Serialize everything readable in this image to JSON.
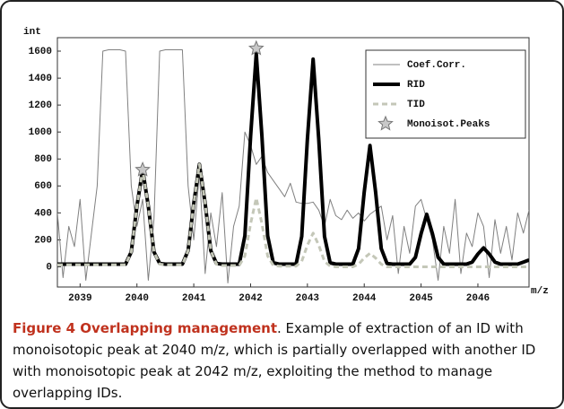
{
  "chart_data": {
    "type": "line",
    "y_label": "int",
    "x_label": "m/z",
    "xlim": [
      2038.6,
      2046.9
    ],
    "ylim": [
      -150,
      1700
    ],
    "xticks": [
      2039,
      2040,
      2041,
      2042,
      2043,
      2044,
      2045,
      2046
    ],
    "yticks": [
      0,
      200,
      400,
      600,
      800,
      1000,
      1200,
      1400,
      1600
    ],
    "legend": "upper right",
    "x": [
      2038.6,
      2038.7,
      2038.8,
      2038.9,
      2039.0,
      2039.1,
      2039.2,
      2039.3,
      2039.4,
      2039.5,
      2039.6,
      2039.7,
      2039.8,
      2039.9,
      2040.0,
      2040.1,
      2040.2,
      2040.3,
      2040.4,
      2040.5,
      2040.6,
      2040.7,
      2040.8,
      2040.9,
      2041.0,
      2041.1,
      2041.2,
      2041.3,
      2041.4,
      2041.5,
      2041.6,
      2041.7,
      2041.8,
      2041.9,
      2042.0,
      2042.1,
      2042.2,
      2042.3,
      2042.4,
      2042.5,
      2042.6,
      2042.7,
      2042.8,
      2042.9,
      2043.0,
      2043.1,
      2043.2,
      2043.3,
      2043.4,
      2043.5,
      2043.6,
      2043.7,
      2043.8,
      2043.9,
      2044.0,
      2044.1,
      2044.2,
      2044.3,
      2044.4,
      2044.5,
      2044.6,
      2044.7,
      2044.8,
      2044.9,
      2045.0,
      2045.1,
      2045.2,
      2045.3,
      2045.4,
      2045.5,
      2045.6,
      2045.7,
      2045.8,
      2045.9,
      2046.0,
      2046.1,
      2046.2,
      2046.3,
      2046.4,
      2046.5,
      2046.6,
      2046.7,
      2046.8,
      2046.9
    ],
    "series": [
      {
        "name": "Coef.Corr.",
        "color": "#808080",
        "style": "thin",
        "values": [
          400,
          -80,
          300,
          150,
          500,
          -100,
          250,
          600,
          1600,
          1610,
          1610,
          1610,
          1600,
          600,
          300,
          500,
          -100,
          350,
          1600,
          1610,
          1610,
          1610,
          1610,
          600,
          200,
          700,
          -50,
          400,
          150,
          550,
          -120,
          300,
          450,
          1000,
          900,
          760,
          820,
          700,
          640,
          580,
          520,
          620,
          480,
          470,
          470,
          480,
          420,
          300,
          500,
          380,
          350,
          420,
          360,
          400,
          340,
          390,
          420,
          450,
          200,
          380,
          -50,
          300,
          100,
          450,
          500,
          350,
          200,
          -100,
          300,
          100,
          500,
          -50,
          250,
          150,
          400,
          300,
          -80,
          350,
          100,
          300,
          50,
          400,
          250,
          420
        ]
      },
      {
        "name": "RID",
        "color": "#000000",
        "style": "thick",
        "values": [
          20,
          20,
          20,
          20,
          20,
          20,
          20,
          20,
          20,
          20,
          20,
          20,
          20,
          110,
          450,
          720,
          450,
          110,
          25,
          20,
          20,
          20,
          20,
          120,
          470,
          760,
          470,
          120,
          25,
          20,
          20,
          20,
          20,
          230,
          970,
          1580,
          970,
          230,
          30,
          20,
          20,
          20,
          20,
          225,
          945,
          1540,
          945,
          225,
          30,
          20,
          20,
          20,
          20,
          135,
          555,
          900,
          555,
          135,
          25,
          20,
          20,
          20,
          20,
          70,
          245,
          390,
          245,
          70,
          20,
          20,
          20,
          20,
          20,
          35,
          95,
          140,
          95,
          35,
          20,
          20,
          20,
          20,
          35,
          50
        ]
      },
      {
        "name": "TID",
        "color": "#c4c7b8",
        "style": "dashed",
        "values": [
          15,
          15,
          15,
          15,
          15,
          15,
          15,
          15,
          15,
          15,
          15,
          15,
          15,
          110,
          450,
          720,
          450,
          110,
          20,
          15,
          15,
          15,
          15,
          120,
          470,
          760,
          470,
          120,
          20,
          10,
          10,
          10,
          10,
          80,
          320,
          510,
          320,
          80,
          10,
          5,
          5,
          5,
          5,
          40,
          160,
          250,
          160,
          40,
          5,
          0,
          0,
          0,
          0,
          20,
          65,
          100,
          65,
          20,
          0,
          0,
          0,
          0,
          0,
          0,
          0,
          0,
          0,
          0,
          0,
          0,
          0,
          0,
          0,
          0,
          0,
          0,
          0,
          0,
          0,
          0,
          0,
          0,
          0,
          0
        ]
      },
      {
        "name": "Monoisot.Peaks",
        "color": "#c8c8c8",
        "style": "star",
        "x": [
          2040.1,
          2042.1
        ],
        "values": [
          720,
          1620
        ]
      }
    ]
  },
  "caption": {
    "title": "Figure 4 Overlapping management",
    "text": ". Example of extraction of an ID with monoisotopic peak at 2040 m/z, which is partially overlapped with another ID with monoisotopic peak at 2042 m/z, exploiting the method to manage overlapping IDs."
  }
}
